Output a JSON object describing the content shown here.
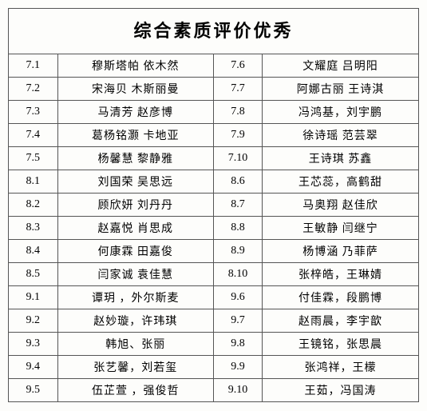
{
  "title": "综合素质评价优秀",
  "rows": [
    {
      "c1": "7.1",
      "c2": "穆斯塔帕 依木然",
      "c3": "7.6",
      "c4": "文耀庭 吕明阳"
    },
    {
      "c1": "7.2",
      "c2": "宋海贝 木斯丽曼",
      "c3": "7.7",
      "c4": "阿娜古丽 王诗淇"
    },
    {
      "c1": "7.3",
      "c2": "马清芳 赵彦博",
      "c3": "7.8",
      "c4": "冯鸿基，刘宇鹏"
    },
    {
      "c1": "7.4",
      "c2": "葛杨铭灏 卡地亚",
      "c3": "7.9",
      "c4": "徐诗瑶 范芸翠"
    },
    {
      "c1": "7.5",
      "c2": "杨馨慧 黎静雅",
      "c3": "7.10",
      "c4": "王诗琪 苏鑫"
    },
    {
      "c1": "8.1",
      "c2": "刘国荣 吴思远",
      "c3": "8.6",
      "c4": "王芯蕊，高鹤甜"
    },
    {
      "c1": "8.2",
      "c2": "顾欣妍 刘丹丹",
      "c3": "8.7",
      "c4": "马奥翔 赵佳欣"
    },
    {
      "c1": "8.3",
      "c2": "赵嘉悦 肖思成",
      "c3": "8.8",
      "c4": "王敏静 闫继宁"
    },
    {
      "c1": "8.4",
      "c2": "何康霖 田嘉俊",
      "c3": "8.9",
      "c4": "杨博涵 乃菲萨"
    },
    {
      "c1": "8.5",
      "c2": "闫家诚 袁佳慧",
      "c3": "8.10",
      "c4": "张梓皓，王琳婧"
    },
    {
      "c1": "9.1",
      "c2": "谭玥 ，外尔斯麦",
      "c3": "9.6",
      "c4": "付佳霖，段鹏博"
    },
    {
      "c1": "9.2",
      "c2": "赵妙璇，许玮琪",
      "c3": "9.7",
      "c4": "赵雨晨，李宇歆"
    },
    {
      "c1": "9.3",
      "c2": "韩旭、张丽",
      "c3": "9.8",
      "c4": "王镜铭，张思晨"
    },
    {
      "c1": "9.4",
      "c2": "张艺馨，刘若玺",
      "c3": "9.9",
      "c4": "张鸿祥，王檬"
    },
    {
      "c1": "9.5",
      "c2": "伍芷萱 ，强俊哲",
      "c3": "9.10",
      "c4": "王茹，冯国涛"
    }
  ]
}
